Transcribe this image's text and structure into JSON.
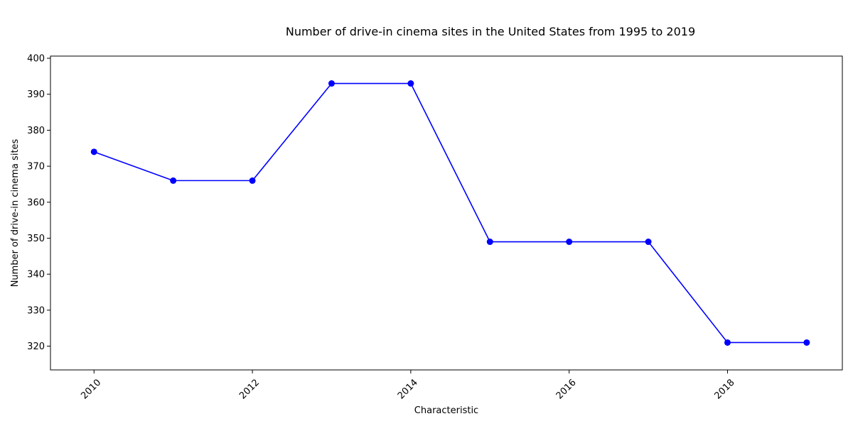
{
  "chart_data": {
    "type": "line",
    "title": "Number of drive-in cinema sites in the United States from 1995 to 2019",
    "xlabel": "Characteristic",
    "ylabel": "Number of drive-in cinema sites",
    "x": [
      2010,
      2011,
      2012,
      2013,
      2014,
      2015,
      2016,
      2017,
      2018,
      2019
    ],
    "series": [
      {
        "values": [
          374,
          366,
          366,
          393,
          393,
          349,
          349,
          349,
          321,
          321
        ]
      }
    ],
    "xticks": [
      "2010",
      "2012",
      "2014",
      "2016",
      "2018"
    ],
    "yticks": [
      "320",
      "330",
      "340",
      "350",
      "360",
      "370",
      "380",
      "390",
      "400"
    ],
    "xlim": [
      2009.45,
      2019.45
    ],
    "ylim": [
      313.4,
      400.6
    ],
    "grid": false,
    "legend": "none",
    "colors": {
      "line": "#0000ff",
      "marker": "#0000ff"
    }
  }
}
